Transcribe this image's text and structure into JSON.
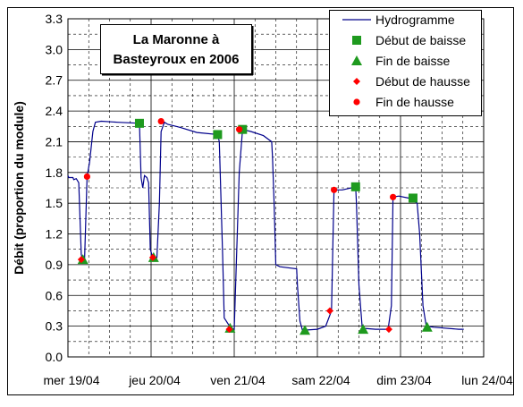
{
  "chart_data": {
    "type": "line",
    "title_lines": [
      "La Maronne à",
      "Basteyroux en 2006"
    ],
    "ylabel": "Débit (proportion du module)",
    "xlabel": "",
    "ylim": [
      0.0,
      3.3
    ],
    "xlim_days": [
      "2006-04-19",
      "2006-04-24"
    ],
    "yticks": [
      "0.0",
      "0.3",
      "0.6",
      "0.9",
      "1.2",
      "1.5",
      "1.8",
      "2.1",
      "2.4",
      "2.7",
      "3.0",
      "3.3"
    ],
    "xticks": [
      "mer 19/04",
      "jeu 20/04",
      "ven 21/04",
      "sam 22/04",
      "dim 23/04",
      "lun 24/04"
    ],
    "grid": "major solid, minor dashed",
    "legend_position": "top-right",
    "legend": [
      "Hydrogramme",
      "Début de baisse",
      "Fin de baisse",
      "Début de hausse",
      "Fin de hausse"
    ],
    "colors": {
      "hydrogramme": "#00008b",
      "debut_baisse": "#1e9a1e",
      "fin_baisse": "#1e9a1e",
      "debut_hausse": "#ff0000",
      "fin_hausse": "#ff0000",
      "grid": "#000000"
    },
    "hydrogramme": [
      [
        0.0,
        1.77
      ],
      [
        0.01,
        1.75
      ],
      [
        0.06,
        1.75
      ],
      [
        0.07,
        1.73
      ],
      [
        0.1,
        1.74
      ],
      [
        0.13,
        1.7
      ],
      [
        0.16,
        1.0
      ],
      [
        0.18,
        0.95
      ],
      [
        0.2,
        0.95
      ],
      [
        0.23,
        1.76
      ],
      [
        0.26,
        1.9
      ],
      [
        0.3,
        2.2
      ],
      [
        0.33,
        2.29
      ],
      [
        0.4,
        2.3
      ],
      [
        0.6,
        2.29
      ],
      [
        0.86,
        2.28
      ],
      [
        0.88,
        1.75
      ],
      [
        0.9,
        1.65
      ],
      [
        0.92,
        1.77
      ],
      [
        0.95,
        1.75
      ],
      [
        0.97,
        1.7
      ],
      [
        0.99,
        1.05
      ],
      [
        1.02,
        0.97
      ],
      [
        1.07,
        0.97
      ],
      [
        1.1,
        1.5
      ],
      [
        1.12,
        2.2
      ],
      [
        1.16,
        2.29
      ],
      [
        1.2,
        2.27
      ],
      [
        1.35,
        2.24
      ],
      [
        1.55,
        2.19
      ],
      [
        1.8,
        2.17
      ],
      [
        1.82,
        2.1
      ],
      [
        1.86,
        1.0
      ],
      [
        1.88,
        0.38
      ],
      [
        1.96,
        0.28
      ],
      [
        2.0,
        0.27
      ],
      [
        2.06,
        1.8
      ],
      [
        2.1,
        2.22
      ],
      [
        2.2,
        2.2
      ],
      [
        2.35,
        2.16
      ],
      [
        2.45,
        2.1
      ],
      [
        2.46,
        1.95
      ],
      [
        2.48,
        1.5
      ],
      [
        2.5,
        0.9
      ],
      [
        2.55,
        0.88
      ],
      [
        2.75,
        0.86
      ],
      [
        2.76,
        0.7
      ],
      [
        2.79,
        0.35
      ],
      [
        2.82,
        0.26
      ],
      [
        3.0,
        0.27
      ],
      [
        3.1,
        0.3
      ],
      [
        3.17,
        0.45
      ],
      [
        3.2,
        1.63
      ],
      [
        3.3,
        1.63
      ],
      [
        3.46,
        1.66
      ],
      [
        3.47,
        1.5
      ],
      [
        3.5,
        0.7
      ],
      [
        3.54,
        0.28
      ],
      [
        3.7,
        0.27
      ],
      [
        3.85,
        0.27
      ],
      [
        3.89,
        0.5
      ],
      [
        3.91,
        1.56
      ],
      [
        3.98,
        1.57
      ],
      [
        4.1,
        1.55
      ],
      [
        4.2,
        1.5
      ],
      [
        4.23,
        1.2
      ],
      [
        4.27,
        0.5
      ],
      [
        4.31,
        0.3
      ],
      [
        4.4,
        0.29
      ],
      [
        4.7,
        0.27
      ],
      [
        4.76,
        0.27
      ]
    ],
    "debut_de_baisse": [
      [
        0.86,
        2.28
      ],
      [
        1.8,
        2.17
      ],
      [
        2.1,
        2.22
      ],
      [
        3.46,
        1.66
      ],
      [
        4.15,
        1.55
      ]
    ],
    "fin_de_baisse": [
      [
        0.18,
        0.95
      ],
      [
        1.03,
        0.97
      ],
      [
        1.95,
        0.28
      ],
      [
        2.85,
        0.26
      ],
      [
        3.55,
        0.27
      ],
      [
        4.32,
        0.29
      ]
    ],
    "debut_de_hausse": [
      [
        0.16,
        0.95
      ],
      [
        1.02,
        0.97
      ],
      [
        1.94,
        0.27
      ],
      [
        3.15,
        0.45
      ],
      [
        3.86,
        0.27
      ]
    ],
    "fin_de_hausse": [
      [
        0.23,
        1.76
      ],
      [
        1.12,
        2.3
      ],
      [
        2.06,
        2.22
      ],
      [
        3.2,
        1.63
      ],
      [
        3.91,
        1.56
      ]
    ]
  }
}
